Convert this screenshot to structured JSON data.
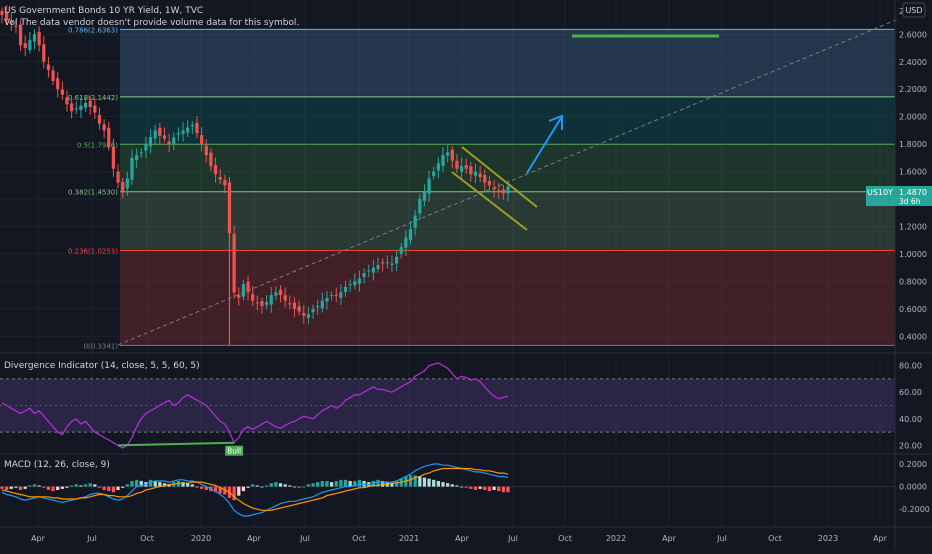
{
  "header": {
    "title": "US Government Bonds 10 YR Yield, 1W, TVC",
    "vol_notice": "Vol  The data vendor doesn't provide volume data for this symbol.",
    "currency": "USD"
  },
  "price_tag": {
    "symbol": "US10Y",
    "value": "1.4870",
    "countdown": "3d 6h",
    "color": "#26a69a"
  },
  "colors": {
    "up": "#26a69a",
    "down": "#ef5350",
    "background": "#131722",
    "rsi_line": "#b32cd6",
    "bull": "#4caf50",
    "macd": "#2196f3",
    "signal": "#ff9800"
  },
  "chart_data": [
    {
      "type": "line",
      "pane": "price",
      "y_axis_scale": "linear",
      "ylim": [
        0.3,
        2.85
      ],
      "x_ticks": [
        "Apr",
        "Jul",
        "Oct",
        "2020",
        "Apr",
        "Jul",
        "Oct",
        "2021",
        "Apr",
        "Jul",
        "Oct",
        "2022",
        "Apr",
        "Jul",
        "Oct",
        "2023",
        "Apr"
      ],
      "y_ticks": [
        "2.6000",
        "2.4000",
        "2.2000",
        "2.0000",
        "1.8000",
        "1.6000",
        "1.4000",
        "1.2000",
        "1.0000",
        "0.8000",
        "0.6000",
        "0.4000"
      ],
      "top_label": "2.",
      "close_path": [
        2.74,
        2.7,
        2.68,
        2.66,
        2.52,
        2.5,
        2.56,
        2.6,
        2.52,
        2.4,
        2.34,
        2.26,
        2.2,
        2.16,
        2.09,
        2.04,
        2.06,
        2.08,
        2.1,
        2.07,
        2.03,
        1.95,
        1.9,
        1.78,
        1.62,
        1.52,
        1.46,
        1.55,
        1.7,
        1.72,
        1.74,
        1.8,
        1.85,
        1.9,
        1.86,
        1.84,
        1.8,
        1.85,
        1.88,
        1.9,
        1.92,
        1.94,
        1.88,
        1.8,
        1.72,
        1.64,
        1.58,
        1.54,
        1.5,
        1.15,
        0.72,
        0.68,
        0.78,
        0.72,
        0.66,
        0.64,
        0.62,
        0.65,
        0.7,
        0.72,
        0.7,
        0.66,
        0.64,
        0.6,
        0.58,
        0.55,
        0.56,
        0.6,
        0.62,
        0.66,
        0.68,
        0.7,
        0.7,
        0.72,
        0.76,
        0.78,
        0.8,
        0.82,
        0.86,
        0.88,
        0.9,
        0.92,
        0.93,
        0.94,
        0.93,
        0.98,
        1.05,
        1.12,
        1.18,
        1.28,
        1.4,
        1.45,
        1.55,
        1.6,
        1.66,
        1.72,
        1.74,
        1.68,
        1.62,
        1.64,
        1.62,
        1.58,
        1.6,
        1.56,
        1.52,
        1.5,
        1.47,
        1.45,
        1.44,
        1.49
      ],
      "fib_levels": [
        {
          "ratio": "0",
          "value": 0.3341,
          "label": "0(0.3341)",
          "color": "#787b86",
          "fill": "#f44336"
        },
        {
          "ratio": "0.236",
          "value": 1.0253,
          "label": "0.236(1.0253)",
          "color": "#f44336",
          "fill": "#81c784"
        },
        {
          "ratio": "0.382",
          "value": 1.453,
          "label": "0.382(1.4530)",
          "color": "#81c784",
          "fill": "#4caf50"
        },
        {
          "ratio": "0.5",
          "value": 1.7986,
          "label": "0.5(1.7986)",
          "color": "#4caf50",
          "fill": "#009688"
        },
        {
          "ratio": "0.618",
          "value": 2.1442,
          "label": "0.618(2.1442)",
          "color": "#81c784",
          "fill": "#64b5f6"
        },
        {
          "ratio": "0.786",
          "value": 2.6363,
          "label": "0.786(2.6363)",
          "color": "#64b5f6",
          "fill": null
        }
      ]
    },
    {
      "type": "line",
      "pane": "oscillator",
      "title": "Divergence Indicator (14, close, 5, 5, 60, 5)",
      "ylim": [
        15,
        88
      ],
      "y_ticks": [
        "80.00",
        "60.00",
        "40.00",
        "20.00"
      ],
      "band": [
        30,
        70
      ],
      "mid_line": 50,
      "signal_label": "Bull",
      "values": [
        52,
        50,
        48,
        46,
        44,
        46,
        48,
        44,
        46,
        42,
        38,
        34,
        30,
        28,
        34,
        38,
        40,
        36,
        38,
        34,
        30,
        28,
        26,
        24,
        22,
        20,
        18,
        20,
        26,
        34,
        40,
        44,
        46,
        48,
        50,
        52,
        54,
        50,
        52,
        56,
        58,
        56,
        54,
        52,
        50,
        46,
        42,
        38,
        36,
        30,
        22,
        26,
        32,
        34,
        32,
        34,
        36,
        38,
        36,
        34,
        33,
        35,
        37,
        38,
        40,
        42,
        41,
        40,
        43,
        46,
        48,
        50,
        48,
        50,
        54,
        56,
        58,
        58,
        60,
        62,
        64,
        62,
        62,
        61,
        60,
        62,
        64,
        66,
        68,
        72,
        74,
        76,
        80,
        81,
        82,
        80,
        78,
        74,
        70,
        72,
        71,
        69,
        70,
        68,
        64,
        60,
        57,
        55,
        56,
        57
      ],
      "series": [
        {
          "name": "",
          "color": "#b32cd6"
        }
      ]
    },
    {
      "type": "bar",
      "pane": "macd",
      "title": "MACD (12, 26, close, 9)",
      "ylim": [
        -0.34,
        0.28
      ],
      "y_ticks": [
        "0.2000",
        "0.0000",
        "-0.2000"
      ],
      "histogram": [
        -0.02,
        -0.03,
        -0.02,
        -0.01,
        -0.03,
        -0.02,
        0.01,
        0.02,
        0.01,
        -0.01,
        -0.03,
        -0.04,
        -0.03,
        -0.02,
        -0.01,
        0.01,
        0.02,
        0.01,
        0.02,
        0.03,
        0.02,
        -0.01,
        -0.03,
        -0.04,
        -0.05,
        -0.03,
        -0.01,
        0.02,
        0.05,
        0.06,
        0.05,
        0.04,
        0.06,
        0.05,
        0.04,
        0.03,
        0.02,
        0.04,
        0.05,
        0.04,
        0.03,
        0.02,
        0.0,
        -0.02,
        -0.03,
        -0.04,
        -0.05,
        -0.06,
        -0.07,
        -0.1,
        -0.12,
        -0.08,
        -0.04,
        -0.01,
        0.02,
        0.01,
        0.0,
        0.01,
        0.03,
        0.04,
        0.03,
        0.02,
        0.01,
        0.0,
        -0.01,
        0.0,
        0.02,
        0.03,
        0.04,
        0.05,
        0.05,
        0.04,
        0.05,
        0.06,
        0.06,
        0.05,
        0.05,
        0.06,
        0.05,
        0.04,
        0.05,
        0.06,
        0.05,
        0.04,
        0.03,
        0.05,
        0.07,
        0.09,
        0.1,
        0.1,
        0.09,
        0.08,
        0.07,
        0.06,
        0.05,
        0.04,
        0.03,
        0.02,
        0.01,
        0.0,
        -0.01,
        -0.02,
        -0.03,
        -0.02,
        -0.03,
        -0.04,
        -0.03,
        -0.04,
        -0.05,
        -0.05
      ],
      "macd_line": [
        -0.05,
        -0.07,
        -0.08,
        -0.09,
        -0.11,
        -0.12,
        -0.11,
        -0.1,
        -0.09,
        -0.1,
        -0.11,
        -0.12,
        -0.13,
        -0.14,
        -0.13,
        -0.12,
        -0.11,
        -0.1,
        -0.09,
        -0.07,
        -0.06,
        -0.06,
        -0.07,
        -0.09,
        -0.11,
        -0.12,
        -0.11,
        -0.08,
        -0.04,
        0.0,
        0.01,
        0.02,
        0.04,
        0.05,
        0.05,
        0.05,
        0.04,
        0.05,
        0.06,
        0.06,
        0.05,
        0.05,
        0.04,
        0.02,
        0.0,
        -0.02,
        -0.04,
        -0.07,
        -0.1,
        -0.15,
        -0.21,
        -0.24,
        -0.26,
        -0.26,
        -0.25,
        -0.24,
        -0.23,
        -0.21,
        -0.19,
        -0.17,
        -0.15,
        -0.14,
        -0.13,
        -0.13,
        -0.12,
        -0.11,
        -0.1,
        -0.09,
        -0.07,
        -0.05,
        -0.04,
        -0.03,
        -0.02,
        -0.01,
        0.0,
        0.0,
        0.01,
        0.02,
        0.02,
        0.02,
        0.03,
        0.04,
        0.04,
        0.04,
        0.04,
        0.05,
        0.07,
        0.09,
        0.11,
        0.14,
        0.16,
        0.18,
        0.19,
        0.2,
        0.2,
        0.19,
        0.19,
        0.18,
        0.17,
        0.16,
        0.15,
        0.14,
        0.13,
        0.13,
        0.12,
        0.11,
        0.1,
        0.09,
        0.09,
        0.08
      ],
      "signal_line": [
        -0.03,
        -0.04,
        -0.05,
        -0.06,
        -0.07,
        -0.08,
        -0.09,
        -0.09,
        -0.09,
        -0.09,
        -0.09,
        -0.1,
        -0.1,
        -0.11,
        -0.11,
        -0.11,
        -0.11,
        -0.1,
        -0.1,
        -0.09,
        -0.08,
        -0.07,
        -0.07,
        -0.08,
        -0.08,
        -0.09,
        -0.09,
        -0.09,
        -0.08,
        -0.06,
        -0.05,
        -0.03,
        -0.02,
        -0.01,
        0.0,
        0.01,
        0.02,
        0.02,
        0.03,
        0.03,
        0.03,
        0.04,
        0.04,
        0.04,
        0.03,
        0.02,
        0.01,
        -0.01,
        -0.03,
        -0.05,
        -0.09,
        -0.12,
        -0.15,
        -0.17,
        -0.19,
        -0.2,
        -0.21,
        -0.21,
        -0.21,
        -0.2,
        -0.19,
        -0.18,
        -0.17,
        -0.16,
        -0.15,
        -0.14,
        -0.13,
        -0.12,
        -0.11,
        -0.1,
        -0.08,
        -0.07,
        -0.06,
        -0.05,
        -0.04,
        -0.03,
        -0.02,
        -0.01,
        -0.01,
        0.0,
        0.01,
        0.01,
        0.02,
        0.02,
        0.03,
        0.03,
        0.04,
        0.05,
        0.06,
        0.08,
        0.09,
        0.11,
        0.12,
        0.14,
        0.15,
        0.16,
        0.16,
        0.16,
        0.16,
        0.16,
        0.16,
        0.16,
        0.15,
        0.15,
        0.14,
        0.14,
        0.13,
        0.12,
        0.12,
        0.11
      ]
    }
  ]
}
